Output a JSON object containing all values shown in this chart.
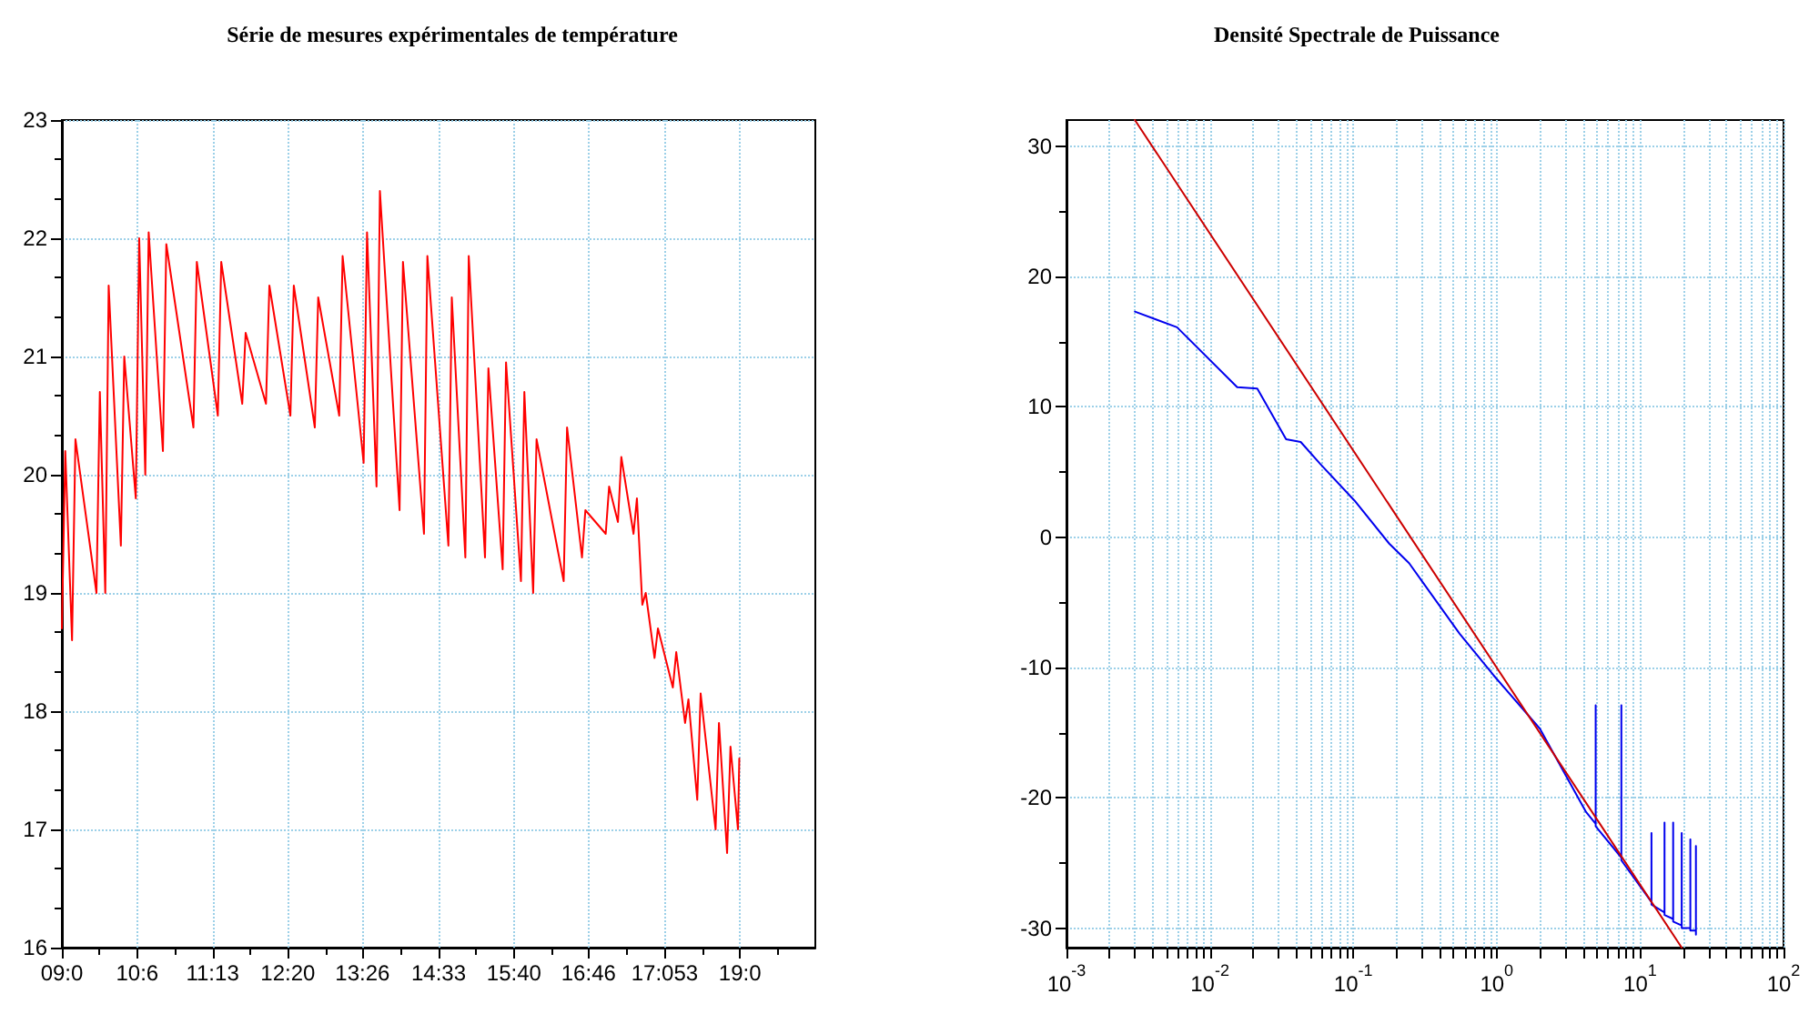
{
  "chart_data": [
    {
      "type": "line",
      "title": "Série de mesures expérimentales de température",
      "color": "#ff0000",
      "marker": "none",
      "grid": true,
      "x": [
        9.0,
        9.05,
        9.15,
        9.2,
        9.51,
        9.56,
        9.64,
        9.69,
        9.87,
        9.92,
        10.09,
        10.14,
        10.23,
        10.28,
        10.49,
        10.54,
        10.94,
        10.99,
        11.3,
        11.35,
        11.66,
        11.71,
        12.01,
        12.06,
        12.37,
        12.42,
        12.73,
        12.78,
        13.09,
        13.14,
        13.45,
        13.5,
        13.64,
        13.69,
        13.98,
        14.03,
        14.34,
        14.39,
        14.7,
        14.75,
        14.95,
        15.0,
        15.24,
        15.29,
        15.5,
        15.55,
        15.77,
        15.82,
        15.95,
        16.0,
        16.4,
        16.45,
        16.67,
        16.72,
        17.02,
        17.07,
        17.2,
        17.25,
        17.43,
        17.48,
        17.56,
        17.61,
        17.74,
        17.79,
        18.01,
        18.06,
        18.19,
        18.24,
        18.37,
        18.42,
        18.64,
        18.69,
        18.81,
        18.86,
        18.97,
        18.99
      ],
      "values": [
        18.7,
        20.2,
        18.6,
        20.3,
        19.0,
        20.7,
        19.0,
        21.6,
        19.4,
        21.0,
        19.8,
        22.0,
        20.0,
        22.05,
        20.2,
        21.95,
        20.4,
        21.8,
        20.5,
        21.8,
        20.6,
        21.2,
        20.6,
        21.6,
        20.5,
        21.6,
        20.4,
        21.5,
        20.5,
        21.85,
        20.1,
        22.05,
        19.9,
        22.4,
        19.7,
        21.8,
        19.5,
        21.85,
        19.4,
        21.5,
        19.3,
        21.85,
        19.3,
        20.9,
        19.2,
        20.95,
        19.1,
        20.7,
        19.0,
        20.3,
        19.1,
        20.4,
        19.3,
        19.7,
        19.5,
        19.9,
        19.6,
        20.15,
        19.5,
        19.8,
        18.9,
        19.0,
        18.45,
        18.7,
        18.2,
        18.5,
        17.9,
        18.1,
        17.25,
        18.15,
        17.0,
        17.9,
        16.8,
        17.7,
        17.0,
        17.6
      ],
      "xlim": [
        9,
        20.111
      ],
      "xticks": [
        {
          "value": 9,
          "label": "09:0"
        },
        {
          "value": 9.556,
          "label": null
        },
        {
          "value": 10.111,
          "label": "10:6"
        },
        {
          "value": 10.667,
          "label": null
        },
        {
          "value": 11.222,
          "label": "11:13"
        },
        {
          "value": 11.778,
          "label": null
        },
        {
          "value": 12.333,
          "label": "12:20"
        },
        {
          "value": 12.889,
          "label": null
        },
        {
          "value": 13.433,
          "label": "13:26"
        },
        {
          "value": 14,
          "label": null
        },
        {
          "value": 14.556,
          "label": "14:33"
        },
        {
          "value": 15.111,
          "label": null
        },
        {
          "value": 15.667,
          "label": "15:40"
        },
        {
          "value": 16.222,
          "label": null
        },
        {
          "value": 16.767,
          "label": "16:46"
        },
        {
          "value": 17.333,
          "label": null
        },
        {
          "value": 17.889,
          "label": "17:053"
        },
        {
          "value": 18.444,
          "label": null
        },
        {
          "value": 19,
          "label": "19:0"
        },
        {
          "value": 19.556,
          "label": null
        }
      ],
      "ylim": [
        16,
        23
      ],
      "yticks": [
        16,
        {
          "value": 16.333,
          "label": null
        },
        {
          "value": 16.667,
          "label": null
        },
        17,
        {
          "value": 17.333,
          "label": null
        },
        {
          "value": 17.667,
          "label": null
        },
        18,
        {
          "value": 18.333,
          "label": null
        },
        {
          "value": 18.667,
          "label": null
        },
        19,
        {
          "value": 19.333,
          "label": null
        },
        {
          "value": 19.667,
          "label": null
        },
        20,
        {
          "value": 20.333,
          "label": null
        },
        {
          "value": 20.667,
          "label": null
        },
        21,
        {
          "value": 21.333,
          "label": null
        },
        {
          "value": 21.667,
          "label": null
        },
        22,
        {
          "value": 22.333,
          "label": null
        },
        {
          "value": 22.667,
          "label": null
        },
        23
      ]
    },
    {
      "type": "line",
      "title": "Densité Spectrale de Puissance",
      "log": "x",
      "marker": "none",
      "grid": true,
      "series": [
        {
          "color": "#0000ee",
          "x": [
            0.003,
            0.0059,
            0.0155,
            0.0214,
            0.034,
            0.043,
            0.059,
            0.102,
            0.178,
            0.245,
            0.316,
            0.55,
            0.95,
            2.0,
            4.2,
            4.9,
            4.9,
            4.9,
            7.4,
            7.4,
            7.4,
            12.0,
            12.0,
            12.0,
            14.8,
            14.8,
            14.8,
            17.0,
            17.0,
            17.0,
            19.5,
            19.5,
            19.5,
            22.4,
            22.4,
            22.4,
            24.5,
            24.5,
            24.5
          ],
          "values": [
            17.3,
            16.1,
            11.5,
            11.4,
            7.5,
            7.3,
            5.6,
            2.8,
            -0.5,
            -2.0,
            -3.7,
            -7.4,
            -10.6,
            -14.7,
            -21.1,
            -22.0,
            -12.9,
            -22.2,
            -24.6,
            -12.9,
            -24.8,
            -28.0,
            -22.7,
            -28.2,
            -28.8,
            -21.9,
            -29.0,
            -29.3,
            -21.9,
            -29.5,
            -29.8,
            -22.7,
            -30.0,
            -30.0,
            -23.2,
            -30.2,
            -30.2,
            -23.7,
            -30.5
          ]
        },
        {
          "color": "#cc0000",
          "x": [
            0.003,
            19.5
          ],
          "values": [
            32,
            -31.5
          ]
        }
      ],
      "xlim": [
        0.001,
        100
      ],
      "xticks": [
        {
          "value": 0.001,
          "label": "10$^{-3}$"
        },
        {
          "value": 0.002,
          "label": null
        },
        {
          "value": 0.003,
          "label": null
        },
        {
          "value": 0.004,
          "label": null
        },
        {
          "value": 0.005,
          "label": null
        },
        {
          "value": 0.006,
          "label": null
        },
        {
          "value": 0.007,
          "label": null
        },
        {
          "value": 0.008,
          "label": null
        },
        {
          "value": 0.009,
          "label": null
        },
        {
          "value": 0.01,
          "label": "10$^{-2}$"
        },
        {
          "value": 0.02,
          "label": null
        },
        {
          "value": 0.03,
          "label": null
        },
        {
          "value": 0.04,
          "label": null
        },
        {
          "value": 0.05,
          "label": null
        },
        {
          "value": 0.06,
          "label": null
        },
        {
          "value": 0.07,
          "label": null
        },
        {
          "value": 0.08,
          "label": null
        },
        {
          "value": 0.09,
          "label": null
        },
        {
          "value": 0.1,
          "label": "10$^{-1}$"
        },
        {
          "value": 0.2,
          "label": null
        },
        {
          "value": 0.3,
          "label": null
        },
        {
          "value": 0.4,
          "label": null
        },
        {
          "value": 0.5,
          "label": null
        },
        {
          "value": 0.6,
          "label": null
        },
        {
          "value": 0.7,
          "label": null
        },
        {
          "value": 0.8,
          "label": null
        },
        {
          "value": 0.9,
          "label": null
        },
        {
          "value": 1,
          "label": "10$^{0}$"
        },
        {
          "value": 2,
          "label": null
        },
        {
          "value": 3,
          "label": null
        },
        {
          "value": 4,
          "label": null
        },
        {
          "value": 5,
          "label": null
        },
        {
          "value": 6,
          "label": null
        },
        {
          "value": 7,
          "label": null
        },
        {
          "value": 8,
          "label": null
        },
        {
          "value": 9,
          "label": null
        },
        {
          "value": 10,
          "label": "10$^{1}$"
        },
        {
          "value": 20,
          "label": null
        },
        {
          "value": 30,
          "label": null
        },
        {
          "value": 40,
          "label": null
        },
        {
          "value": 50,
          "label": null
        },
        {
          "value": 60,
          "label": null
        },
        {
          "value": 70,
          "label": null
        },
        {
          "value": 80,
          "label": null
        },
        {
          "value": 90,
          "label": null
        },
        {
          "value": 100,
          "label": "10$^{2}$"
        }
      ],
      "ylim": [
        -31.5,
        32
      ],
      "yticks": [
        -30,
        {
          "value": -25,
          "label": null
        },
        -20,
        {
          "value": -15,
          "label": null
        },
        -10,
        {
          "value": -5,
          "label": null
        },
        0,
        {
          "value": 5,
          "label": null
        },
        10,
        {
          "value": 15,
          "label": null
        },
        20,
        {
          "value": 25,
          "label": null
        },
        30
      ]
    }
  ]
}
